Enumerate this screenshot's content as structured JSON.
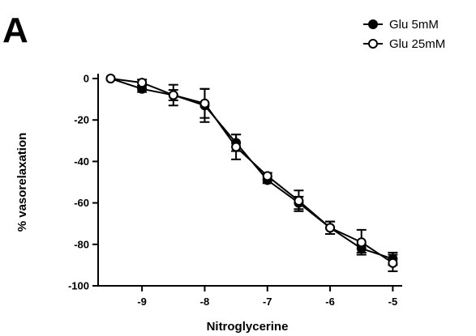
{
  "panel_label": "A",
  "chart_data": {
    "type": "line",
    "title": "",
    "xlabel": "Nitroglycerine",
    "ylabel": "% vasorelaxation",
    "xlim": [
      -9.7,
      -4.85
    ],
    "ylim": [
      -100,
      0
    ],
    "x_ticks": [
      -9,
      -8,
      -7,
      -6,
      -5
    ],
    "y_ticks": [
      0,
      -20,
      -40,
      -60,
      -80,
      -100
    ],
    "grid": false,
    "legend_position": "top-right",
    "series": [
      {
        "name": "Glu 5mM",
        "marker": "filled-circle",
        "color": "#000000",
        "x": [
          -9.5,
          -9,
          -8.5,
          -8,
          -7.5,
          -7,
          -6.5,
          -6,
          -5.5,
          -5
        ],
        "y": [
          0,
          -5,
          -8,
          -13,
          -31,
          -49,
          -60,
          -72,
          -82,
          -87
        ],
        "error": [
          0,
          1.5,
          2.5,
          8,
          4,
          1.5,
          3,
          3,
          2,
          3
        ]
      },
      {
        "name": "Glu 25mM",
        "marker": "open-circle",
        "color": "#000000",
        "x": [
          -9.5,
          -9,
          -8.5,
          -8,
          -7.5,
          -7,
          -6.5,
          -6,
          -5.5,
          -5
        ],
        "y": [
          0,
          -2,
          -8,
          -12,
          -33,
          -47,
          -59,
          -72,
          -79,
          -89
        ],
        "error": [
          0,
          1.5,
          5,
          7,
          6,
          1.5,
          5,
          3,
          6,
          4
        ]
      }
    ]
  }
}
